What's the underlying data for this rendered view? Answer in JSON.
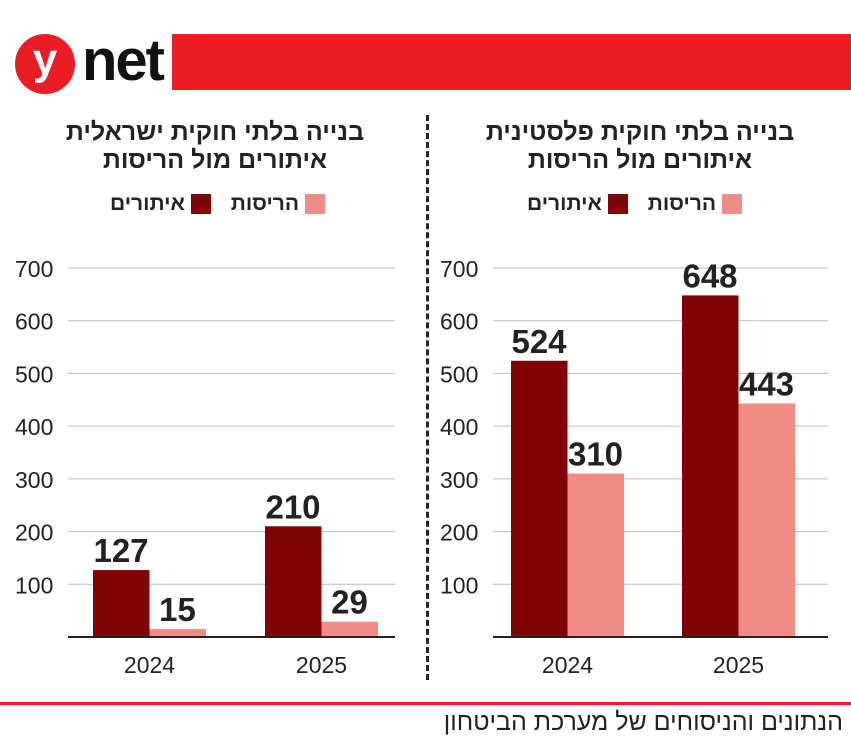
{
  "header": {
    "logo_y": "y",
    "logo_net": "net"
  },
  "colors": {
    "brand": "#ec1c24",
    "dark": "#800404",
    "light": "#f08c84"
  },
  "legend": {
    "demolitions": "הריסות",
    "detections": "איתורים"
  },
  "footer": "הנתונים והניסוחים של מערכת הביטחון",
  "chart_data": [
    {
      "type": "bar",
      "title": "בנייה בלתי חוקית ישראלית",
      "subtitle": "איתורים מול הריסות",
      "categories": [
        "2024",
        "2025"
      ],
      "series": [
        {
          "name": "איתורים",
          "values": [
            127,
            210
          ]
        },
        {
          "name": "הריסות",
          "values": [
            15,
            29
          ]
        }
      ],
      "yticks": [
        "100",
        "200",
        "300",
        "400",
        "500",
        "600",
        "700"
      ],
      "ylim": [
        0,
        700
      ],
      "grid": true
    },
    {
      "type": "bar",
      "title": "בנייה בלתי חוקית פלסטינית",
      "subtitle": "איתורים מול הריסות",
      "categories": [
        "2024",
        "2025"
      ],
      "series": [
        {
          "name": "איתורים",
          "values": [
            524,
            648
          ]
        },
        {
          "name": "הריסות",
          "values": [
            310,
            443
          ]
        }
      ],
      "yticks": [
        "100",
        "200",
        "300",
        "400",
        "500",
        "600",
        "700"
      ],
      "ylim": [
        0,
        700
      ],
      "grid": true
    }
  ]
}
